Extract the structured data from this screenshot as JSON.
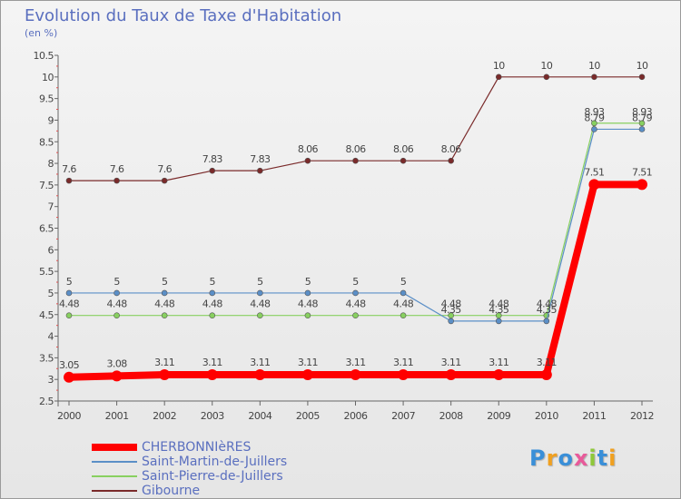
{
  "chart_data": {
    "type": "line",
    "title": "Evolution du Taux de Taxe d'Habitation",
    "subtitle": "(en %)",
    "x": [
      "2000",
      "2001",
      "2002",
      "2003",
      "2004",
      "2005",
      "2006",
      "2007",
      "2008",
      "2009",
      "2010",
      "2011",
      "2012"
    ],
    "ylim": [
      2.5,
      10.5
    ],
    "yticks": [
      "2.5",
      "3",
      "3.5",
      "4",
      "4.5",
      "5",
      "5.5",
      "6",
      "6.5",
      "7",
      "7.5",
      "8",
      "8.5",
      "9",
      "9.5",
      "10",
      "10.5"
    ],
    "grid": false,
    "legend_position": "bottom-left",
    "series": [
      {
        "name": "CHERBONNIèRES",
        "color": "#ff0000",
        "values": [
          3.05,
          3.08,
          3.11,
          3.11,
          3.11,
          3.11,
          3.11,
          3.11,
          3.11,
          3.11,
          3.11,
          7.51,
          7.51
        ],
        "labels": [
          "3.05",
          "3.08",
          "3.11",
          "3.11",
          "3.11",
          "3.11",
          "3.11",
          "3.11",
          "3.11",
          "3.11",
          "3.11",
          "7.51",
          "7.51"
        ]
      },
      {
        "name": "Saint-Martin-de-Juillers",
        "color": "#5b8fc7",
        "values": [
          5,
          5,
          5,
          5,
          5,
          5,
          5,
          5,
          4.35,
          4.35,
          4.35,
          8.79,
          8.79
        ],
        "labels": [
          "5",
          "5",
          "5",
          "5",
          "5",
          "5",
          "5",
          "5",
          "4.35",
          "4.35",
          "4.35",
          "8.79",
          "8.79"
        ]
      },
      {
        "name": "Saint-Pierre-de-Juillers",
        "color": "#88d060",
        "values": [
          4.48,
          4.48,
          4.48,
          4.48,
          4.48,
          4.48,
          4.48,
          4.48,
          4.48,
          4.48,
          4.48,
          8.93,
          8.93
        ],
        "labels": [
          "4.48",
          "4.48",
          "4.48",
          "4.48",
          "4.48",
          "4.48",
          "4.48",
          "4.48",
          "4.48",
          "4.48",
          "4.48",
          "8.93",
          "8.93"
        ]
      },
      {
        "name": "Gibourne",
        "color": "#7a2a2a",
        "values": [
          7.6,
          7.6,
          7.6,
          7.83,
          7.83,
          8.06,
          8.06,
          8.06,
          8.06,
          10,
          10,
          10,
          10
        ],
        "labels": [
          "7.6",
          "7.6",
          "7.6",
          "7.83",
          "7.83",
          "8.06",
          "8.06",
          "8.06",
          "8.06",
          "10",
          "10",
          "10",
          "10"
        ]
      }
    ]
  },
  "logo": {
    "letters": [
      "P",
      "r",
      "o",
      "x",
      "i",
      "t",
      "i"
    ],
    "colors": [
      "#3a8fd8",
      "#f0a020",
      "#3a8fd8",
      "#e85a9a",
      "#8fc83a",
      "#3a8fd8",
      "#f0a020"
    ]
  }
}
